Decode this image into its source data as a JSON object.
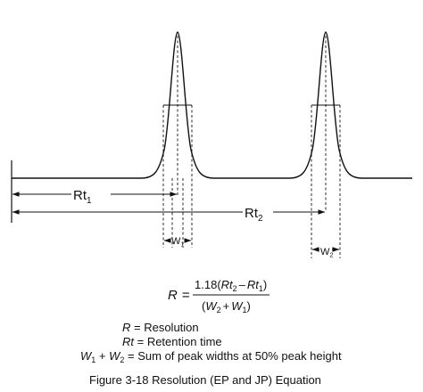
{
  "diagram": {
    "labels": {
      "rt1": {
        "main": "Rt",
        "sub": "1"
      },
      "rt2": {
        "main": "Rt",
        "sub": "2"
      },
      "w1": {
        "main": "W",
        "sub": "1"
      },
      "w2": {
        "main": "W",
        "sub": "2"
      }
    }
  },
  "equation": {
    "lhs": "R",
    "equals": "=",
    "numerator": {
      "coefficient": "1.18",
      "open": "(",
      "term1": "Rt",
      "term1_sub": "2",
      "minus": "–",
      "term2": "Rt",
      "term2_sub": "1",
      "close": ")"
    },
    "denominator": {
      "open": "(",
      "term1": "W",
      "term1_sub": "2",
      "plus": "+",
      "term2": "W",
      "term2_sub": "1",
      "close": ")"
    }
  },
  "legend": [
    {
      "symbol": "R",
      "text": " = Resolution"
    },
    {
      "symbol": "Rt",
      "text": " = Retention time"
    },
    {
      "symbol1": "W",
      "sub1": "1",
      "plus": " + ",
      "symbol2": "W",
      "sub2": "2",
      "text": " = Sum of peak widths at 50% peak height"
    }
  ],
  "caption": "Figure 3-18  Resolution (EP and JP) Equation"
}
